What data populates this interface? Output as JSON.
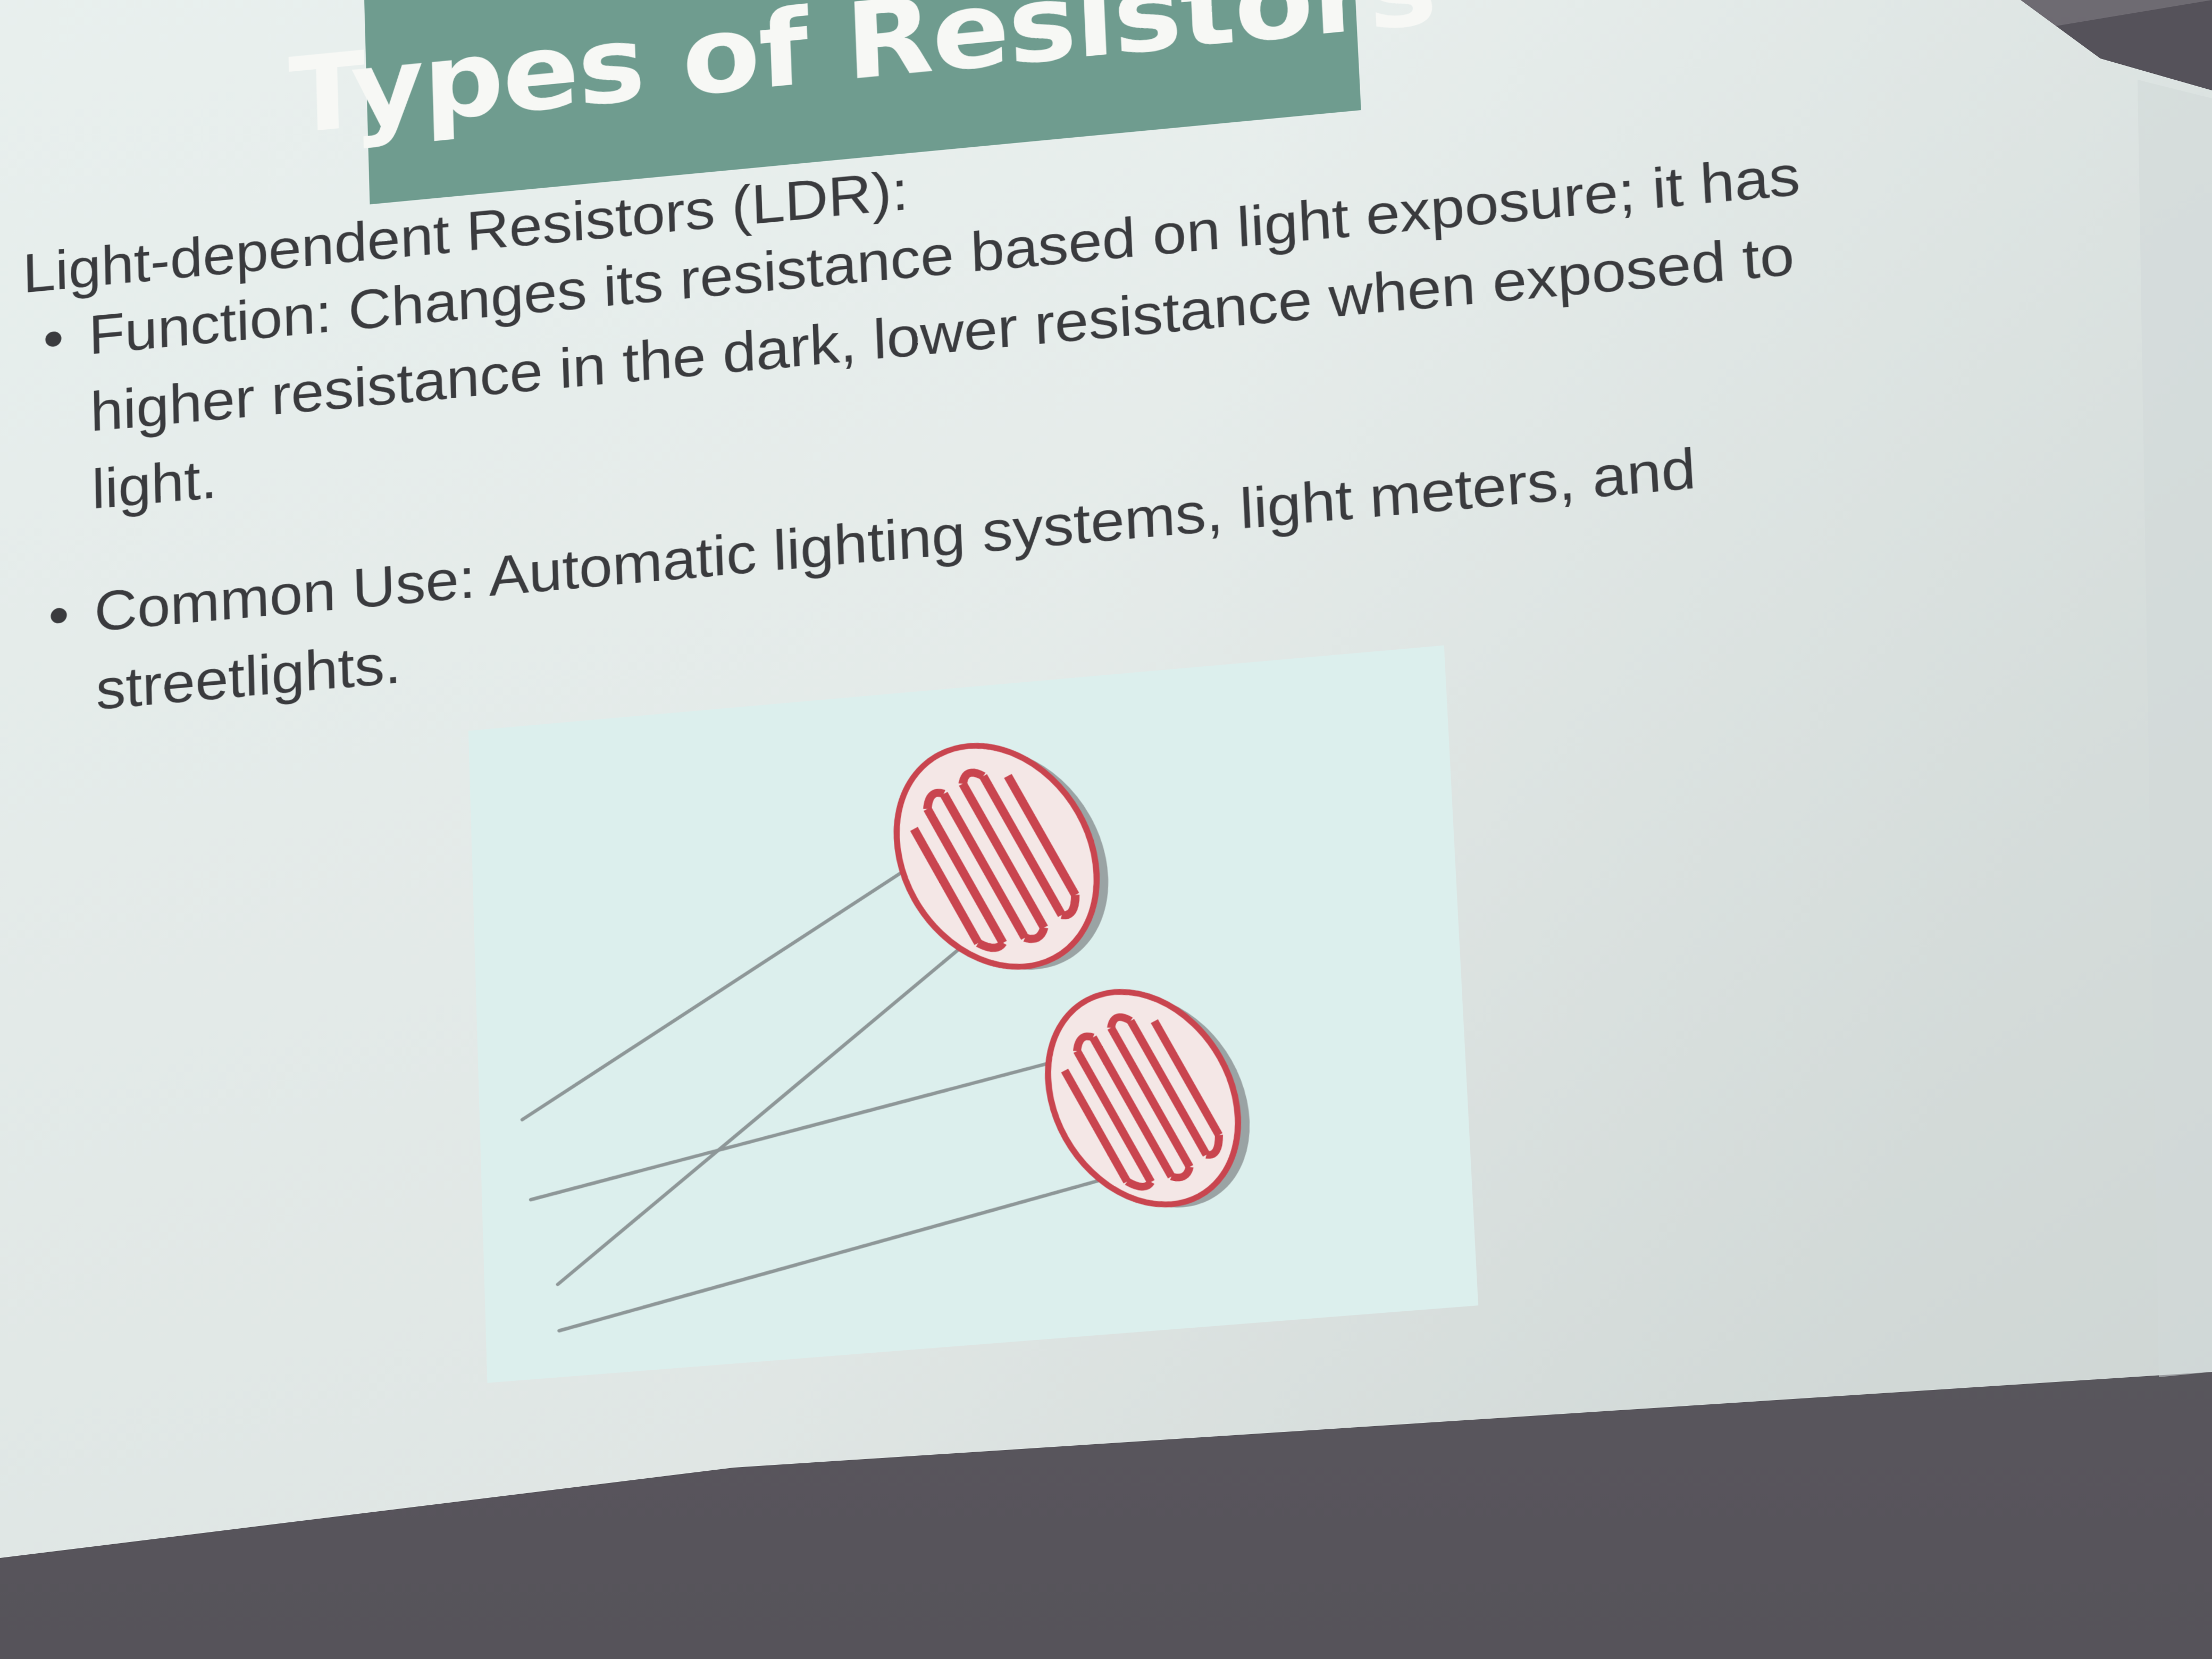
{
  "slide": {
    "title": "Types of Resistors",
    "heading": "Light-dependent Resistors (LDR):",
    "bullets": [
      {
        "text": "Function: Changes its resistance based on light exposure; it has higher resistance in the dark, lower resistance when exposed to light."
      },
      {
        "text": "Common Use: Automatic lighting systems, light meters, and streetlights."
      }
    ],
    "image": {
      "subject": "two light-dependent resistors",
      "icon": "ldr-photo"
    }
  },
  "colors": {
    "title_band": "#6f9c8f",
    "title_text": "#f7f8f5",
    "body_text": "#3a3b3e",
    "screen": "#e9f1ef",
    "photo_background": "#dcefed",
    "ldr_track": "#c9454f",
    "ldr_body": "#f4e7e6",
    "room": "#5f5c63"
  }
}
